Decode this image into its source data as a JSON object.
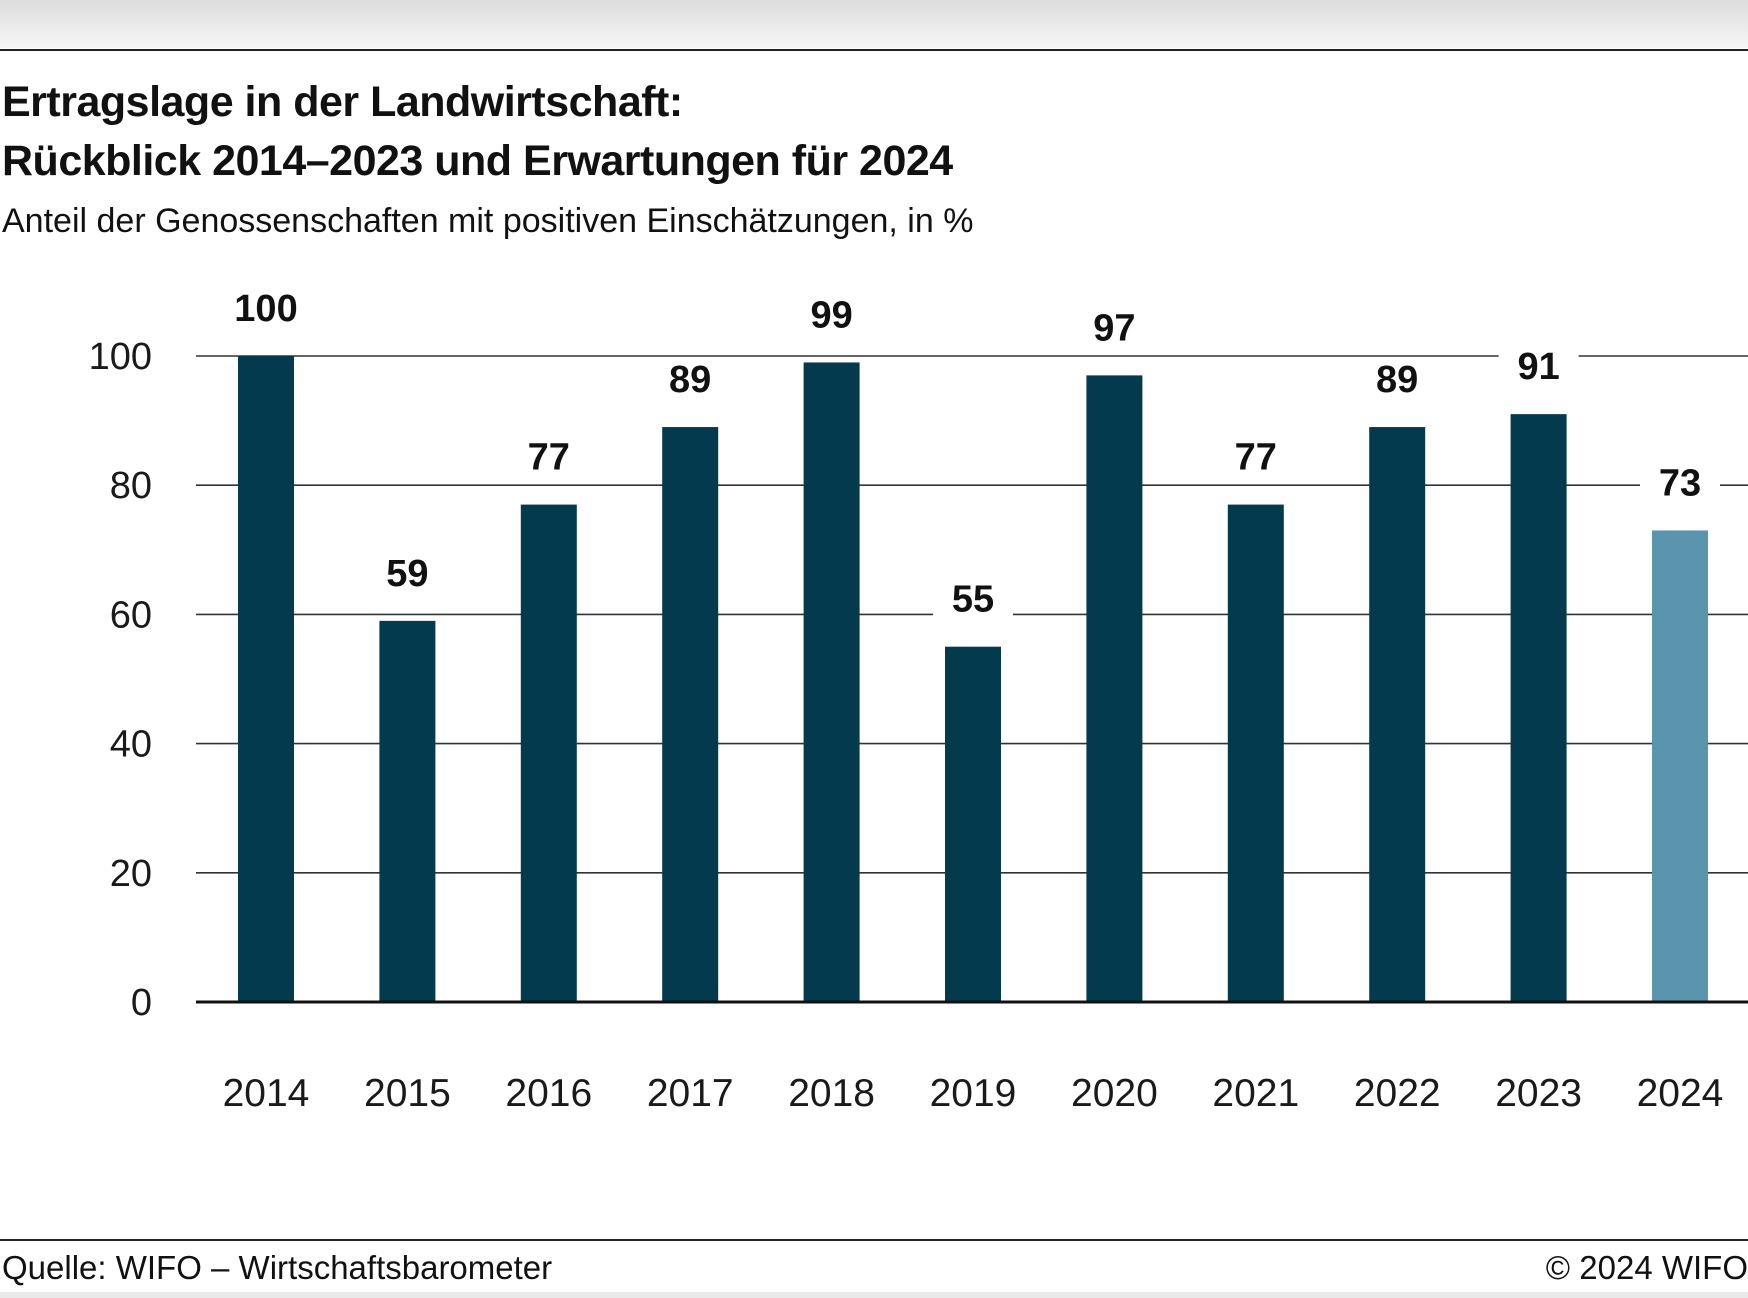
{
  "header": {
    "title_line1": "Ertragslage in der Landwirtschaft:",
    "title_line2": "Rückblick 2014–2023 und Erwartungen für 2024",
    "subtitle": "Anteil der Genossenschaften mit positiven Einschätzungen, in %"
  },
  "footer": {
    "source": "Quelle: WIFO – Wirtschaftsbarometer",
    "copyright": "© 2024 WIFO"
  },
  "colors": {
    "bar": "#033a4d",
    "bar_expectation": "#5a95ad",
    "grid": "#333333",
    "axis": "#111111"
  },
  "chart_data": {
    "type": "bar",
    "title": "Ertragslage in der Landwirtschaft: Rückblick 2014–2023 und Erwartungen für 2024",
    "subtitle": "Anteil der Genossenschaften mit positiven Einschätzungen, in %",
    "xlabel": "",
    "ylabel": "",
    "categories": [
      "2014",
      "2015",
      "2016",
      "2017",
      "2018",
      "2019",
      "2020",
      "2021",
      "2022",
      "2023",
      "2024"
    ],
    "values": [
      100,
      59,
      77,
      89,
      99,
      55,
      97,
      77,
      89,
      91,
      73
    ],
    "highlight_last": true,
    "ylim": [
      0,
      100
    ],
    "yticks": [
      0,
      20,
      40,
      60,
      80,
      100
    ],
    "grid": true,
    "legend": "none",
    "data_labels": true
  }
}
